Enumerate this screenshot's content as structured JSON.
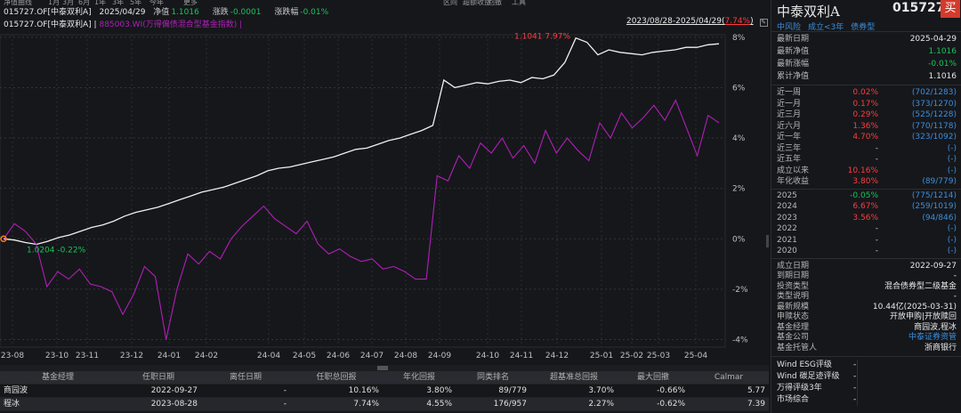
{
  "topbar": {
    "items": [
      "净值曲线",
      "1月",
      "3月",
      "6月",
      "1年",
      "3年",
      "5年",
      "今年",
      "更多",
      "区间",
      "超额收益",
      "回撤",
      "工具"
    ]
  },
  "info": {
    "code_name": "015727.OF[中泰双利A]",
    "date": "2025/04/29",
    "nav_label": "净值",
    "nav_value": "1.1016",
    "chg_label": "涨跌",
    "chg_value": "-0.0001",
    "pct_label": "涨跌幅",
    "pct_value": "-0.01%"
  },
  "legend": {
    "series1": "015727.OF[中泰双利A]",
    "sep": "|",
    "series2": "885003.WI(万得偏债混合型基金指数)",
    "sep2": "|"
  },
  "range": {
    "text": "2023/08/28-2025/04/29(",
    "pct": "7.74%",
    "close": ")"
  },
  "chart_data": {
    "type": "line",
    "x_tick_labels": [
      "23-08",
      "23-10",
      "23-11",
      "23-12",
      "24-01",
      "24-02",
      "24-04",
      "24-05",
      "24-06",
      "24-07",
      "24-08",
      "24-09",
      "24-10",
      "24-11",
      "24-12",
      "25-01",
      "25-02",
      "25-03",
      "25-04"
    ],
    "y_tick_labels": [
      "8%",
      "6%",
      "4%",
      "2%",
      "0%",
      "-2%",
      "-4%"
    ],
    "ylim": [
      -4.3,
      8.1
    ],
    "series": [
      {
        "name": "015727.OF[中泰双利A]",
        "color": "#f0f0f0",
        "values": [
          0.0,
          -0.05,
          -0.15,
          -0.22,
          -0.1,
          0.05,
          0.15,
          0.3,
          0.45,
          0.55,
          0.7,
          0.9,
          1.05,
          1.15,
          1.25,
          1.4,
          1.55,
          1.7,
          1.85,
          1.95,
          2.05,
          2.2,
          2.35,
          2.5,
          2.7,
          2.8,
          2.85,
          2.95,
          3.05,
          3.15,
          3.25,
          3.4,
          3.55,
          3.6,
          3.75,
          3.9,
          4.0,
          4.15,
          4.3,
          4.5,
          6.3,
          6.0,
          6.1,
          6.2,
          6.15,
          6.25,
          6.3,
          6.2,
          6.4,
          6.35,
          6.5,
          7.0,
          7.97,
          7.8,
          7.3,
          7.5,
          7.4,
          7.35,
          7.3,
          7.4,
          7.45,
          7.5,
          7.6,
          7.6,
          7.7,
          7.74
        ]
      },
      {
        "name": "885003.WI(万得偏债混合型基金指数)",
        "color": "#b01fb8",
        "values": [
          0.0,
          0.6,
          0.3,
          -0.2,
          -1.9,
          -1.3,
          -1.6,
          -1.2,
          -1.8,
          -1.9,
          -2.1,
          -3.0,
          -2.2,
          -1.1,
          -1.5,
          -4.0,
          -2.0,
          -0.6,
          -1.0,
          -0.5,
          -0.8,
          0.0,
          0.5,
          0.9,
          1.3,
          0.8,
          0.5,
          0.2,
          0.7,
          -0.2,
          -0.6,
          -0.4,
          -0.7,
          -0.9,
          -0.8,
          -1.2,
          -1.1,
          -1.3,
          -1.6,
          -1.6,
          2.5,
          2.3,
          3.3,
          2.8,
          3.8,
          3.4,
          4.0,
          3.2,
          3.7,
          3.0,
          4.3,
          3.4,
          4.0,
          3.5,
          3.1,
          4.6,
          4.0,
          5.0,
          4.4,
          4.8,
          5.3,
          4.7,
          5.5,
          4.4,
          3.3,
          4.9,
          4.6
        ]
      }
    ],
    "annotations": [
      {
        "text": "1.1041 7.97%",
        "color": "#ff3b3b"
      },
      {
        "text": "1.0204 -0.22%",
        "color": "#19c35a"
      }
    ],
    "grid": true
  },
  "table": {
    "headers": [
      "基金经理",
      "任职日期",
      "离任日期",
      "任职总回报",
      "年化回报",
      "同类排名",
      "超基准总回报",
      "最大回撤",
      "Calmar"
    ],
    "rows": [
      [
        "商园波",
        "2022-09-27",
        "-",
        "10.16%",
        "3.80%",
        "89/779",
        "3.70%",
        "-0.66%",
        "5.77"
      ],
      [
        "程冰",
        "2023-08-28",
        "-",
        "7.74%",
        "4.55%",
        "176/957",
        "2.27%",
        "-0.62%",
        "7.39"
      ]
    ]
  },
  "panel": {
    "name": "中泰双利A",
    "code": "015727",
    "buy": "买",
    "tags": [
      "中风险",
      "成立<3年",
      "债券型"
    ],
    "latest": [
      {
        "label": "最新日期",
        "value": "2025-04-29",
        "color": "#e8e8e8"
      },
      {
        "label": "最新净值",
        "value": "1.1016",
        "color": "#19c35a"
      },
      {
        "label": "最新涨幅",
        "value": "-0.01%",
        "color": "#19c35a"
      },
      {
        "label": "累计净值",
        "value": "1.1016",
        "color": "#e8e8e8"
      }
    ],
    "perf": [
      {
        "label": "近一周",
        "value": "0.02%",
        "color": "#ff3b3b",
        "rank": "(702/1283)"
      },
      {
        "label": "近一月",
        "value": "0.17%",
        "color": "#ff3b3b",
        "rank": "(373/1270)"
      },
      {
        "label": "近三月",
        "value": "0.29%",
        "color": "#ff3b3b",
        "rank": "(525/1228)"
      },
      {
        "label": "近六月",
        "value": "1.36%",
        "color": "#ff3b3b",
        "rank": "(770/1178)"
      },
      {
        "label": "近一年",
        "value": "4.70%",
        "color": "#ff3b3b",
        "rank": "(323/1092)"
      },
      {
        "label": "近三年",
        "value": "-",
        "color": "#c8c8c8",
        "rank": "(-)"
      },
      {
        "label": "近五年",
        "value": "-",
        "color": "#c8c8c8",
        "rank": "(-)"
      },
      {
        "label": "成立以来",
        "value": "10.16%",
        "color": "#ff3b3b",
        "rank": "(-)"
      },
      {
        "label": "年化收益",
        "value": "3.80%",
        "color": "#ff3b3b",
        "rank": "(89/779)"
      }
    ],
    "years": [
      {
        "label": "2025",
        "value": "-0.05%",
        "color": "#19c35a",
        "rank": "(775/1214)"
      },
      {
        "label": "2024",
        "value": "6.67%",
        "color": "#ff3b3b",
        "rank": "(259/1019)"
      },
      {
        "label": "2023",
        "value": "3.56%",
        "color": "#ff3b3b",
        "rank": "(94/846)"
      },
      {
        "label": "2022",
        "value": "-",
        "color": "#c8c8c8",
        "rank": "(-)"
      },
      {
        "label": "2021",
        "value": "-",
        "color": "#c8c8c8",
        "rank": "(-)"
      },
      {
        "label": "2020",
        "value": "-",
        "color": "#c8c8c8",
        "rank": "(-)"
      }
    ],
    "details": [
      {
        "label": "成立日期",
        "value": "2022-09-27",
        "color": "#e8e8e8"
      },
      {
        "label": "到期日期",
        "value": "-",
        "color": "#e8e8e8"
      },
      {
        "label": "投资类型",
        "value": "混合债券型二级基金",
        "color": "#e8e8e8"
      },
      {
        "label": "类型说明",
        "value": "-",
        "color": "#e8e8e8"
      },
      {
        "label": "最新规模",
        "value": "10.44亿(2025-03-31)",
        "color": "#e8e8e8"
      },
      {
        "label": "申赎状态",
        "value": "开放申购|开放赎回",
        "color": "#e8e8e8"
      },
      {
        "label": "基金经理",
        "value": "商园波,程冰",
        "color": "#e8e8e8"
      },
      {
        "label": "基金公司",
        "value": "中泰证券资管",
        "color": "#3a8fdc"
      },
      {
        "label": "基金托管人",
        "value": "浙商银行",
        "color": "#e8e8e8"
      }
    ],
    "ratings": [
      {
        "label": "Wind ESG评级",
        "value": "-"
      },
      {
        "label": "Wind 碳足迹评级",
        "value": "-"
      },
      {
        "label": "万得评级3年",
        "value": "-"
      },
      {
        "label": "市场综合",
        "value": "-"
      }
    ]
  }
}
